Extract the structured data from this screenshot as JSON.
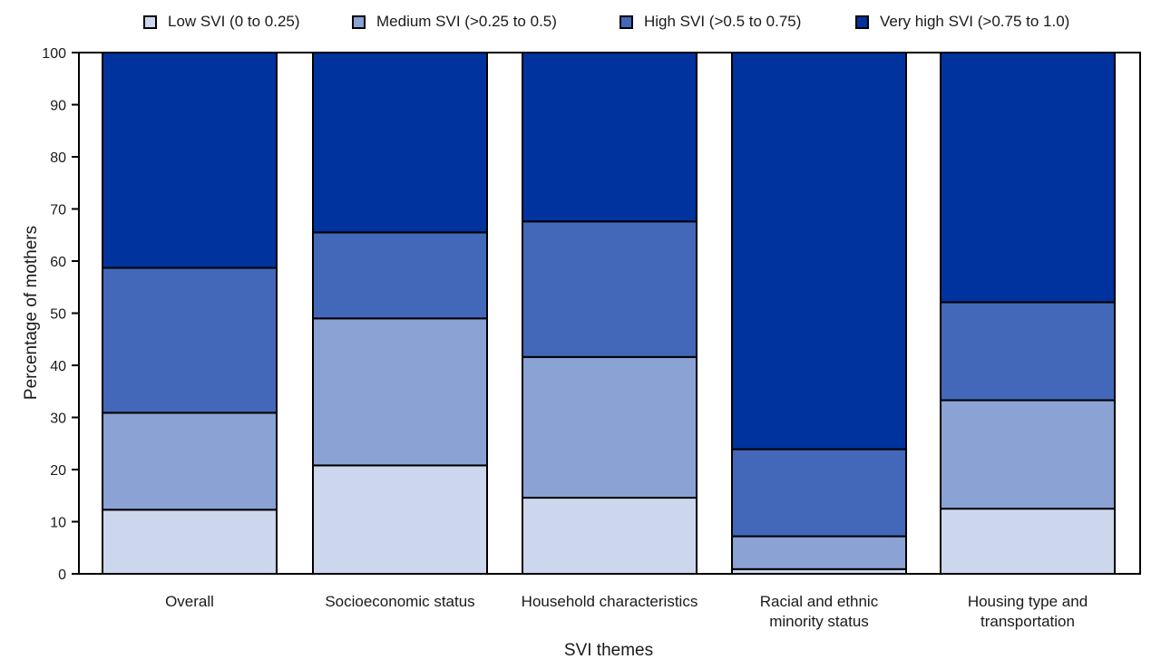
{
  "chart_data": {
    "type": "bar",
    "stacked": true,
    "xlabel": "SVI themes",
    "ylabel": "Percentage of mothers",
    "ylim": [
      0,
      100
    ],
    "yticks": [
      0,
      10,
      20,
      30,
      40,
      50,
      60,
      70,
      80,
      90,
      100
    ],
    "grid": false,
    "legend_position": "top",
    "categories": [
      [
        "Overall"
      ],
      [
        "Socioeconomic status"
      ],
      [
        "Household characteristics"
      ],
      [
        "Racial and ethnic",
        "minority status"
      ],
      [
        "Housing type and",
        "transportation"
      ]
    ],
    "series": [
      {
        "name": "Low SVI (0 to 0.25)",
        "color": "#ccd7ed",
        "values": [
          12.3,
          20.8,
          14.6,
          0.9,
          12.5
        ]
      },
      {
        "name": "Medium SVI (>0.25 to 0.5)",
        "color": "#8aa2d4",
        "values": [
          18.6,
          28.2,
          27.0,
          6.3,
          20.8
        ]
      },
      {
        "name": "High SVI (>0.5 to 0.75)",
        "color": "#4468b9",
        "values": [
          27.8,
          16.5,
          26.0,
          16.7,
          18.8
        ]
      },
      {
        "name": "Very high SVI (>0.75 to 1.0)",
        "color": "#00339e",
        "values": [
          41.3,
          34.5,
          32.4,
          76.1,
          47.9
        ]
      }
    ]
  }
}
